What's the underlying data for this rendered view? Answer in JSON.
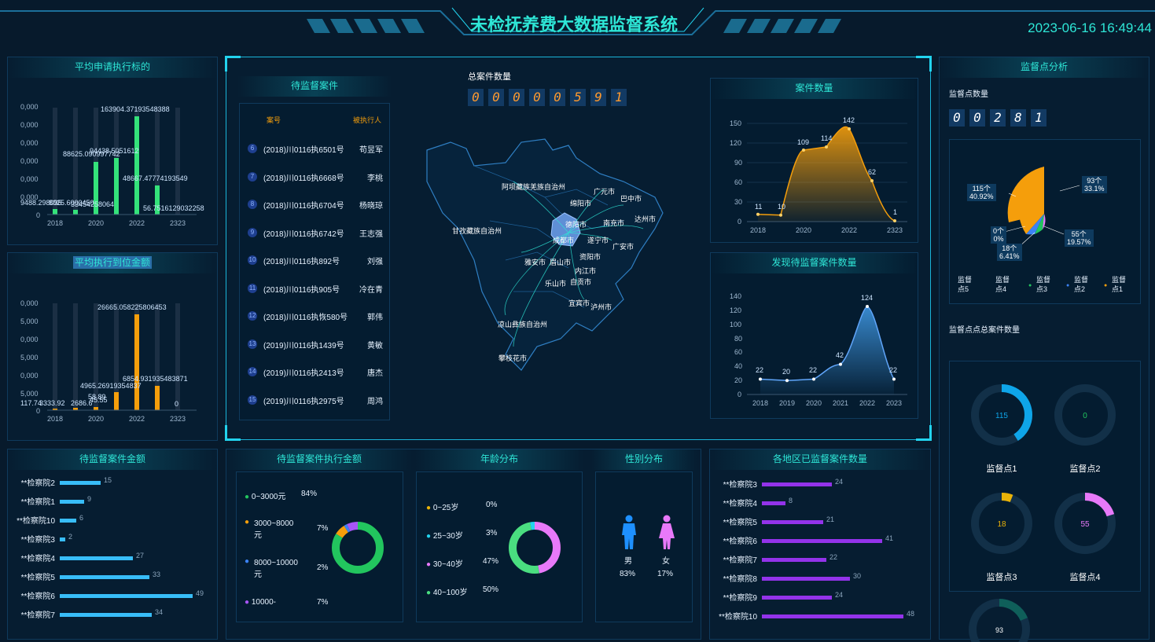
{
  "header": {
    "title": "未检抚养费大数据监督系统",
    "datetime": "2023-06-16 16:49:44"
  },
  "panel_avg_apply": {
    "title": "平均申请执行标的",
    "y_ticks": [
      "0,000",
      "0,000",
      "0,000",
      "0,000",
      "0,000",
      "0,000",
      "0"
    ],
    "x_ticks": [
      "2018",
      "2020",
      "2022",
      "2323"
    ],
    "labels": [
      "9488.298095",
      "8025.6000450",
      "33454258064",
      "88625.090997742",
      "94438.5051612",
      "163904.37193548388",
      "48667.47774193549",
      "56.7516129032258"
    ]
  },
  "panel_avg_paid": {
    "title": "平均执行到位金额",
    "y_ticks": [
      "0,000",
      "5,000",
      "0,000",
      "5,000",
      "0,000",
      "5,000",
      "0"
    ],
    "x_ticks": [
      "2018",
      "2020",
      "2022",
      "2323"
    ],
    "labels": [
      "117.74",
      "3333.92",
      "2686.6",
      "45.55",
      "4965.26919354837",
      "58.89",
      "26665.058225806453",
      "6854.931935483871",
      "0"
    ]
  },
  "panel_pending_amount": {
    "title": "待监督案件金额",
    "items": [
      {
        "name": "**检察院2",
        "value": "15"
      },
      {
        "name": "**检察院1",
        "value": "9"
      },
      {
        "name": "**检察院10",
        "value": "6"
      },
      {
        "name": "**检察院3",
        "value": "2"
      },
      {
        "name": "**检察院4",
        "value": "27"
      },
      {
        "name": "**检察院5",
        "value": "33"
      },
      {
        "name": "**检察院6",
        "value": "49"
      },
      {
        "name": "**检察院7",
        "value": "34"
      }
    ]
  },
  "panel_cases": {
    "title": "待监督案件",
    "col_case": "案号",
    "col_person": "被执行人",
    "rows": [
      {
        "n": "6",
        "case": "(2018)川0116执6501号",
        "person": "苟昱军"
      },
      {
        "n": "7",
        "case": "(2018)川0116执6668号",
        "person": "李桃"
      },
      {
        "n": "8",
        "case": "(2018)川0116执6704号",
        "person": "杨晓琼"
      },
      {
        "n": "9",
        "case": "(2018)川0116执6742号",
        "person": "王志强"
      },
      {
        "n": "10",
        "case": "(2018)川0116执892号",
        "person": "刘强"
      },
      {
        "n": "11",
        "case": "(2018)川0116执905号",
        "person": "冷在青"
      },
      {
        "n": "12",
        "case": "(2018)川0116执恢580号",
        "person": "郭伟"
      },
      {
        "n": "13",
        "case": "(2019)川0116执1439号",
        "person": "黄敏"
      },
      {
        "n": "14",
        "case": "(2019)川0116执2413号",
        "person": "唐杰"
      },
      {
        "n": "15",
        "case": "(2019)川0116执2975号",
        "person": "周鸿"
      }
    ]
  },
  "total": {
    "label": "总案件数量",
    "digits": [
      "0",
      "0",
      "0",
      "0",
      "0",
      "5",
      "9",
      "1"
    ]
  },
  "map": {
    "cities": [
      "阿坝藏族羌族自治州",
      "广元市",
      "绵阳市",
      "巴中市",
      "达州市",
      "南充市",
      "德阳市",
      "甘孜藏族自治州",
      "成都市",
      "遂宁市",
      "广安市",
      "资阳市",
      "雅安市",
      "眉山市",
      "内江市",
      "乐山市",
      "自贡市",
      "宜宾市",
      "泸州市",
      "凉山彝族自治州",
      "攀枝花市"
    ]
  },
  "case_count": {
    "title": "案件数量",
    "y_ticks": [
      "150",
      "120",
      "90",
      "60",
      "30",
      "0"
    ],
    "x_ticks": [
      "2018",
      "2020",
      "2022",
      "2323"
    ],
    "values": [
      "11",
      "10",
      "109",
      "114",
      "142",
      "62",
      "1"
    ]
  },
  "found_count": {
    "title": "发现待监督案件数量",
    "y_ticks": [
      "140",
      "120",
      "100",
      "80",
      "60",
      "40",
      "20",
      "0"
    ],
    "x_ticks": [
      "2018",
      "2019",
      "2020",
      "2021",
      "2022",
      "2023"
    ],
    "values": [
      "22",
      "20",
      "22",
      "42",
      "124",
      "22"
    ]
  },
  "exec_amount": {
    "title": "待监督案件执行金额",
    "items": [
      {
        "label": "0~3000元",
        "pct": "84%",
        "color": "#22c55e"
      },
      {
        "label": "3000~8000元",
        "pct": "7%",
        "color": "#f59e0b"
      },
      {
        "label": "8000~10000元",
        "pct": "2%",
        "color": "#3b82f6"
      },
      {
        "label": "10000-",
        "pct": "7%",
        "color": "#a855f7"
      }
    ]
  },
  "age": {
    "title": "年龄分布",
    "items": [
      {
        "label": "0~25岁",
        "pct": "0%",
        "color": "#eab308"
      },
      {
        "label": "25~30岁",
        "pct": "3%",
        "color": "#22d3ee"
      },
      {
        "label": "30~40岁",
        "pct": "47%",
        "color": "#e879f9"
      },
      {
        "label": "40~100岁",
        "pct": "50%",
        "color": "#4ade80"
      }
    ]
  },
  "gender": {
    "title": "性别分布",
    "male": "男",
    "female": "女",
    "male_pct": "83%",
    "female_pct": "17%"
  },
  "regions": {
    "title": "各地区已监督案件数量",
    "items": [
      {
        "name": "**检察院3",
        "value": "24"
      },
      {
        "name": "**检察院4",
        "value": "8"
      },
      {
        "name": "**检察院5",
        "value": "21"
      },
      {
        "name": "**检察院6",
        "value": "41"
      },
      {
        "name": "**检察院7",
        "value": "22"
      },
      {
        "name": "**检察院8",
        "value": "30"
      },
      {
        "name": "**检察院9",
        "value": "24"
      },
      {
        "name": "**检察院10",
        "value": "48"
      }
    ]
  },
  "analysis": {
    "title": "监督点分析",
    "count_label": "监督点数量",
    "digits": [
      "0",
      "0",
      "2",
      "8",
      "1"
    ],
    "pie_labels": [
      {
        "t1": "115个",
        "t2": "40.92%"
      },
      {
        "t1": "93个",
        "t2": "33.1%"
      },
      {
        "t1": "0个",
        "t2": "0%"
      },
      {
        "t1": "55个",
        "t2": "19.57%"
      },
      {
        "t1": "18个",
        "t2": "6.41%"
      }
    ],
    "legend": [
      {
        "l1": "监督",
        "l2": "点5"
      },
      {
        "l1": "监督",
        "l2": "点4"
      },
      {
        "l1": "监督",
        "l2": "点3"
      },
      {
        "l1": "监督",
        "l2": "点2"
      },
      {
        "l1": "监督",
        "l2": "点1"
      }
    ],
    "total_label": "监督点点总案件数量",
    "rings": [
      {
        "value": "115",
        "name": "监督点1",
        "frac": 0.41,
        "color": "#0ea5e9"
      },
      {
        "value": "0",
        "name": "监督点2",
        "frac": 0,
        "color": "#22c55e"
      },
      {
        "value": "18",
        "name": "监督点3",
        "frac": 0.06,
        "color": "#eab308"
      },
      {
        "value": "55",
        "name": "监督点4",
        "frac": 0.2,
        "color": "#e879f9"
      }
    ],
    "partial": "93"
  }
}
